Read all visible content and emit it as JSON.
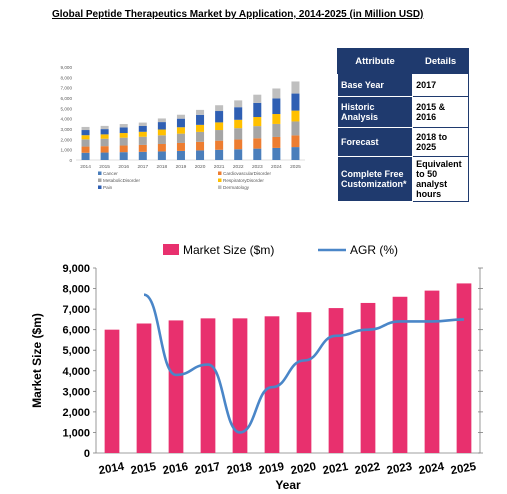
{
  "title": "Global Peptide Therapeutics Market by Application, 2014-2025 (in Million USD)",
  "table": {
    "headers": [
      "Attribute",
      "Details"
    ],
    "rows": [
      {
        "attribute": "Base Year",
        "details": "2017"
      },
      {
        "attribute": "Historic Analysis",
        "details": "2015 & 2016"
      },
      {
        "attribute": "Forecast",
        "details": "2018 to 2025"
      },
      {
        "attribute": "Complete Free Customization*",
        "details": "Equivalent to 50 analyst hours"
      }
    ]
  },
  "colors": {
    "cancer": "#4a7ebb",
    "cardiovascular": "#ed7d31",
    "metabolic": "#a5a5a5",
    "respiratory": "#ffc000",
    "pain": "#2f5fb3",
    "dermatology": "#bfbfbf",
    "market_bar": "#e8306e",
    "agr_line": "#4a86c8",
    "table_header": "#1f3a6e"
  },
  "chart_data": [
    {
      "type": "bar",
      "stacked": true,
      "categories": [
        "2014",
        "2015",
        "2016",
        "2017",
        "2018",
        "2019",
        "2020",
        "2021",
        "2022",
        "2023",
        "2024",
        "2025"
      ],
      "ylim": [
        0,
        9000
      ],
      "yticks": [
        "0",
        "1,000",
        "2,000",
        "3,000",
        "4,000",
        "5,000",
        "6,000",
        "7,000",
        "8,000",
        "9,000"
      ],
      "series": [
        {
          "name": "Cancer",
          "values": [
            700,
            720,
            760,
            790,
            830,
            880,
            930,
            990,
            1040,
            1100,
            1170,
            1250
          ]
        },
        {
          "name": "CardiovascularDisorder",
          "values": [
            600,
            620,
            640,
            670,
            720,
            770,
            830,
            880,
            940,
            1000,
            1060,
            1130
          ]
        },
        {
          "name": "MetabolicDisorder",
          "values": [
            700,
            720,
            760,
            790,
            840,
            900,
            960,
            1030,
            1100,
            1180,
            1260,
            1350
          ]
        },
        {
          "name": "RespiratoryDisorder",
          "values": [
            400,
            420,
            450,
            480,
            560,
            620,
            680,
            740,
            810,
            880,
            960,
            1050
          ]
        },
        {
          "name": "Pain",
          "values": [
            500,
            510,
            540,
            560,
            720,
            830,
            970,
            1100,
            1220,
            1370,
            1510,
            1650
          ]
        },
        {
          "name": "Dermatology",
          "values": [
            300,
            310,
            330,
            330,
            350,
            380,
            480,
            560,
            660,
            790,
            960,
            1170
          ]
        }
      ]
    },
    {
      "type": "bar+line",
      "categories": [
        "2014",
        "2015",
        "2016",
        "2017",
        "2018",
        "2019",
        "2020",
        "2021",
        "2022",
        "2023",
        "2024",
        "2025"
      ],
      "xlabel": "Year",
      "ylabel": "Market Size ($m)",
      "ylim": [
        0,
        9000
      ],
      "yticks": [
        "0",
        "1,000",
        "2,000",
        "3,000",
        "4,000",
        "5,000",
        "6,000",
        "7,000",
        "8,000",
        "9,000"
      ],
      "series": [
        {
          "name": "Market Size ($m)",
          "type": "bar",
          "values": [
            6000,
            6300,
            6450,
            6550,
            6550,
            6650,
            6850,
            7050,
            7300,
            7600,
            7900,
            8250
          ]
        },
        {
          "name": "AGR (%)",
          "type": "line",
          "secondary_axis": true,
          "values": [
            null,
            7.7,
            3.8,
            4.3,
            1.0,
            3.2,
            4.5,
            5.7,
            6.0,
            6.4,
            6.4,
            6.5
          ]
        }
      ],
      "ylim_secondary": [
        0,
        9
      ]
    }
  ]
}
